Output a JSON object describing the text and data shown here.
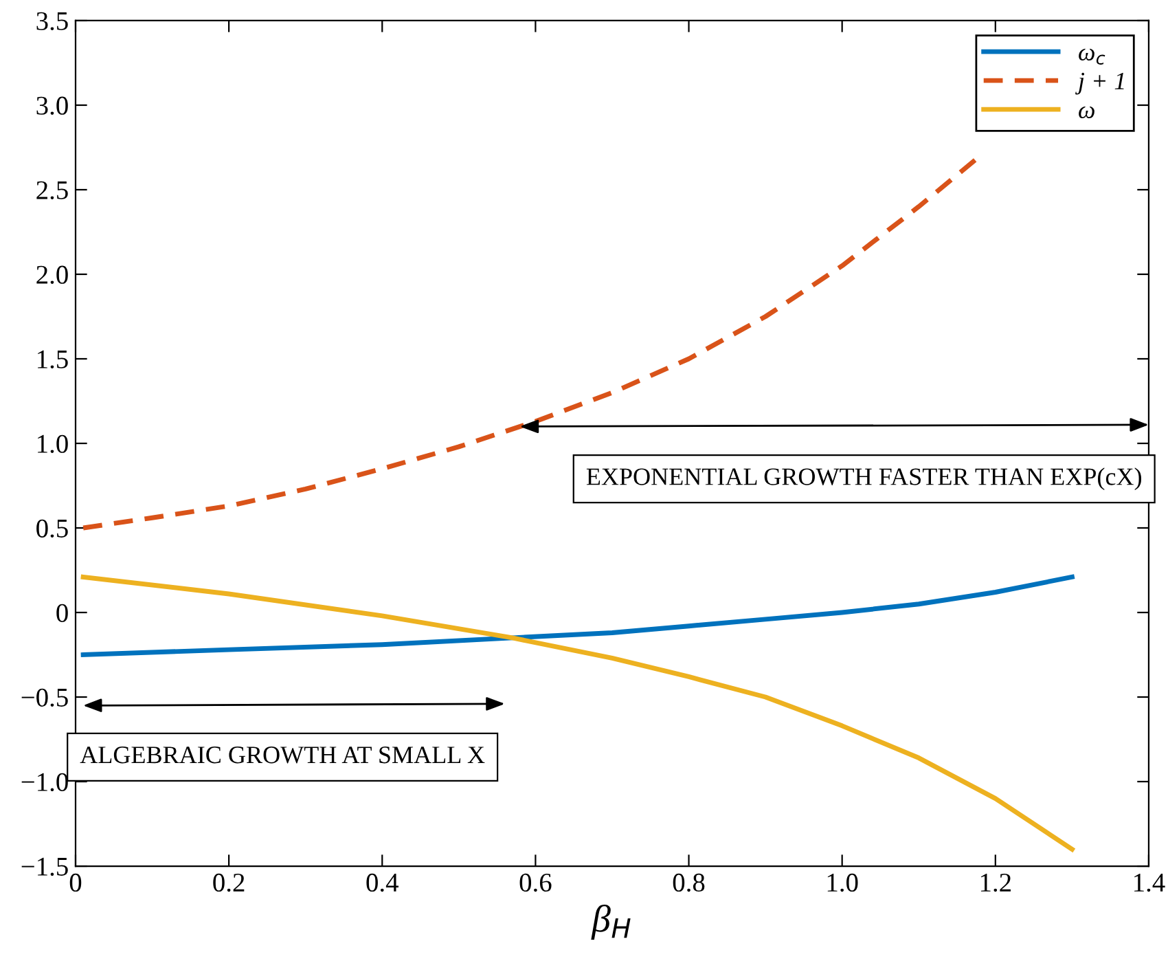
{
  "chart_data": {
    "type": "line",
    "xlabel": "β$_{H}$",
    "xlim": [
      0,
      1.4
    ],
    "ylim": [
      -1.5,
      3.5
    ],
    "xticks": [
      0,
      0.2,
      0.4,
      0.6,
      0.8,
      {
        "value": 1.0,
        "label": "1.0"
      },
      1.2,
      1.4
    ],
    "yticks": [
      {
        "value": -1.5,
        "label": "−1.5"
      },
      {
        "value": -1.0,
        "label": "−1.0"
      },
      {
        "value": -0.5,
        "label": "−0.5"
      },
      0,
      0.5,
      {
        "value": 1.0,
        "label": "1.0"
      },
      1.5,
      {
        "value": 2.0,
        "label": "2.0"
      },
      2.5,
      {
        "value": 3.0,
        "label": "3.0"
      },
      3.5
    ],
    "series": [
      {
        "name": "ω$_{c}$",
        "color": "#0072bd",
        "line_style": "solid",
        "x": [
          0.01,
          0.2,
          0.4,
          0.57,
          0.7,
          0.8,
          0.9,
          1.0,
          1.1,
          1.2,
          1.3
        ],
        "values": [
          -0.25,
          -0.22,
          -0.19,
          -0.15,
          -0.12,
          -0.08,
          -0.04,
          0.0,
          0.05,
          0.12,
          0.21
        ]
      },
      {
        "name": "j + 1",
        "color": "#d95319",
        "line_style": "dashed",
        "x": [
          0.01,
          0.1,
          0.2,
          0.3,
          0.4,
          0.5,
          0.6,
          0.7,
          0.8,
          0.9,
          1.0,
          1.1,
          1.18
        ],
        "values": [
          0.5,
          0.56,
          0.63,
          0.73,
          0.85,
          0.98,
          1.13,
          1.3,
          1.5,
          1.75,
          2.05,
          2.4,
          2.7
        ]
      },
      {
        "name": "ω",
        "color": "#edb120",
        "line_style": "solid",
        "x": [
          0.01,
          0.2,
          0.4,
          0.57,
          0.7,
          0.8,
          0.9,
          1.0,
          1.1,
          1.2,
          1.3
        ],
        "values": [
          0.21,
          0.11,
          -0.02,
          -0.15,
          -0.27,
          -0.38,
          -0.5,
          -0.67,
          -0.86,
          -1.1,
          -1.4
        ]
      }
    ],
    "annotations": [
      "EXPONENTIAL GROWTH FASTER THAN EXP(cX)",
      "ALGEBRAIC GROWTH AT SMALL X"
    ],
    "legend": "top right",
    "grid": false,
    "marker": "none"
  }
}
